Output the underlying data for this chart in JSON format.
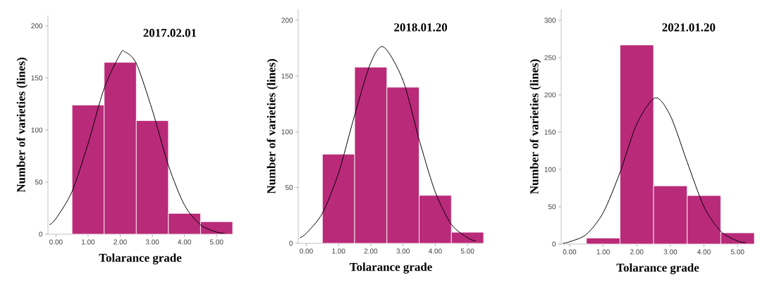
{
  "chart_data": [
    {
      "type": "histogram",
      "title": "2017.02.01",
      "xlabel": "Tolarance grade",
      "ylabel": "Number of varieties (lines)",
      "xlim": [
        -0.25,
        5.5
      ],
      "ylim": [
        0,
        210
      ],
      "xticks": [
        {
          "value": 0,
          "label": "0.00"
        },
        {
          "value": 1,
          "label": "1.00"
        },
        {
          "value": 2,
          "label": "2.00"
        },
        {
          "value": 3,
          "label": "3.00"
        },
        {
          "value": 4,
          "label": "4.00"
        },
        {
          "value": 5,
          "label": "5.00"
        }
      ],
      "yticks": [
        0,
        50,
        100,
        150,
        200
      ],
      "series": [
        {
          "type": "histogram",
          "color": "#b92a79",
          "bins": [
            0.5,
            1.5,
            2.5,
            3.5,
            4.5,
            5.5
          ],
          "values": [
            124,
            165,
            109,
            20,
            12
          ]
        },
        {
          "type": "line",
          "color": "#000000",
          "x": [
            -0.2,
            0,
            0.5,
            1,
            1.5,
            2,
            2.15,
            2.5,
            3,
            3.5,
            4,
            4.5,
            5,
            5.25
          ],
          "values": [
            9,
            15,
            41,
            87,
            140,
            173,
            175,
            164,
            119,
            66,
            28,
            9,
            2,
            1
          ]
        }
      ]
    },
    {
      "type": "histogram",
      "title": "2018.01.20",
      "xlabel": "Tolarance grade",
      "ylabel": "Number of varieties (lines)",
      "xlim": [
        -0.25,
        5.5
      ],
      "ylim": [
        0,
        210
      ],
      "xticks": [
        {
          "value": 0,
          "label": "0.00"
        },
        {
          "value": 1,
          "label": "1.00"
        },
        {
          "value": 2,
          "label": "2.00"
        },
        {
          "value": 3,
          "label": "3.00"
        },
        {
          "value": 4,
          "label": "4.00"
        },
        {
          "value": 5,
          "label": "5.00"
        }
      ],
      "yticks": [
        0,
        50,
        100,
        150,
        200
      ],
      "series": [
        {
          "type": "histogram",
          "color": "#b92a79",
          "bins": [
            0.5,
            1.5,
            2.5,
            3.5,
            4.5,
            5.5
          ],
          "values": [
            80,
            158,
            140,
            43,
            10
          ]
        },
        {
          "type": "line",
          "color": "#000000",
          "x": [
            -0.2,
            0,
            0.5,
            1,
            1.5,
            2,
            2.4,
            3,
            3.5,
            4,
            4.5,
            5,
            5.25
          ],
          "values": [
            5,
            9,
            27,
            63,
            115,
            162,
            176,
            146,
            93,
            46,
            17,
            5,
            2
          ]
        }
      ]
    },
    {
      "type": "histogram",
      "title": "2021.01.20",
      "xlabel": "Tolarance grade",
      "ylabel": "Number of varieties (lines)",
      "xlim": [
        -0.25,
        5.5
      ],
      "ylim": [
        0,
        315
      ],
      "xticks": [
        {
          "value": 0,
          "label": "0.00"
        },
        {
          "value": 1,
          "label": "1.00"
        },
        {
          "value": 2,
          "label": "2.00"
        },
        {
          "value": 3,
          "label": "3.00"
        },
        {
          "value": 4,
          "label": "4.00"
        },
        {
          "value": 5,
          "label": "5.00"
        }
      ],
      "yticks": [
        0,
        50,
        100,
        150,
        200,
        250,
        300
      ],
      "series": [
        {
          "type": "histogram",
          "color": "#b92a79",
          "bins": [
            0.5,
            1.5,
            2.5,
            3.5,
            4.5,
            5.5
          ],
          "values": [
            8,
            267,
            78,
            65,
            15
          ]
        },
        {
          "type": "line",
          "color": "#000000",
          "x": [
            -0.2,
            0,
            0.5,
            1,
            1.5,
            2,
            2.55,
            3,
            3.5,
            4,
            4.5,
            5,
            5.25
          ],
          "values": [
            1,
            3,
            13,
            42,
            96,
            161,
            196,
            172,
            110,
            50,
            17,
            4,
            2
          ]
        }
      ]
    }
  ]
}
